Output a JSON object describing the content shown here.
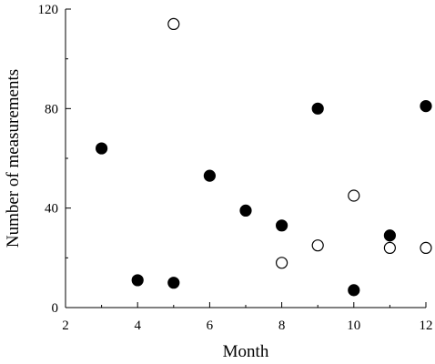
{
  "chart_data": {
    "type": "scatter",
    "xlabel": "Month",
    "ylabel": "Number of measurements",
    "xlim": [
      2,
      12
    ],
    "ylim": [
      0,
      120
    ],
    "x_ticks": [
      2,
      4,
      6,
      8,
      10,
      12
    ],
    "y_ticks": [
      0,
      40,
      80,
      120
    ],
    "grid": false,
    "legend": "none",
    "series": [
      {
        "marker": "filled-circle",
        "color": "#000000",
        "points": [
          {
            "x": 3,
            "y": 64
          },
          {
            "x": 4,
            "y": 11
          },
          {
            "x": 5,
            "y": 10
          },
          {
            "x": 6,
            "y": 53
          },
          {
            "x": 7,
            "y": 39
          },
          {
            "x": 8,
            "y": 33
          },
          {
            "x": 9,
            "y": 80
          },
          {
            "x": 10,
            "y": 7
          },
          {
            "x": 11,
            "y": 29
          },
          {
            "x": 12,
            "y": 81
          }
        ]
      },
      {
        "marker": "open-circle",
        "color": "#000000",
        "points": [
          {
            "x": 5,
            "y": 114
          },
          {
            "x": 8,
            "y": 18
          },
          {
            "x": 9,
            "y": 25
          },
          {
            "x": 10,
            "y": 45
          },
          {
            "x": 11,
            "y": 24
          },
          {
            "x": 12,
            "y": 24
          }
        ]
      }
    ]
  }
}
